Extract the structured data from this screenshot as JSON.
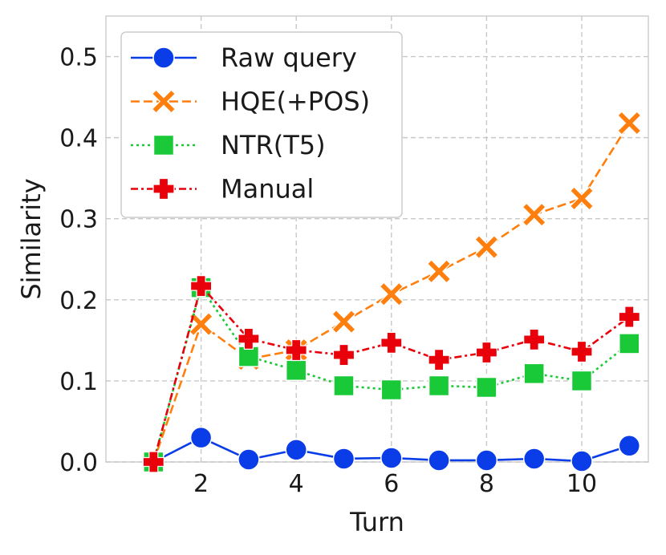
{
  "chart_data": {
    "type": "line",
    "title": "",
    "xlabel": "Turn",
    "ylabel": "Similarity",
    "xlim": [
      0.0,
      11.4
    ],
    "ylim": [
      0.0,
      0.55
    ],
    "xticks": [
      2,
      4,
      6,
      8,
      10
    ],
    "yticks": [
      0.0,
      0.1,
      0.2,
      0.3,
      0.4,
      0.5
    ],
    "ytick_labels": [
      "0.0",
      "0.1",
      "0.2",
      "0.3",
      "0.4",
      "0.5"
    ],
    "grid": true,
    "legend_position": "top-left",
    "x": [
      1,
      2,
      3,
      4,
      5,
      6,
      7,
      8,
      9,
      10,
      11
    ],
    "series": [
      {
        "name": "Raw query",
        "color": "#0a3ce8",
        "marker": "circle",
        "linestyle": "solid",
        "values": [
          0.0,
          0.03,
          0.003,
          0.015,
          0.004,
          0.005,
          0.002,
          0.002,
          0.004,
          0.001,
          0.02
        ]
      },
      {
        "name": "HQE(+POS)",
        "color": "#ff7f0e",
        "marker": "x",
        "linestyle": "dashed",
        "values": [
          0.0,
          0.17,
          0.127,
          0.138,
          0.173,
          0.207,
          0.235,
          0.265,
          0.305,
          0.325,
          0.418
        ]
      },
      {
        "name": "NTR(T5)",
        "color": "#1ac938",
        "marker": "square",
        "linestyle": "dotted",
        "values": [
          0.0,
          0.215,
          0.13,
          0.113,
          0.094,
          0.089,
          0.094,
          0.092,
          0.109,
          0.1,
          0.146
        ]
      },
      {
        "name": "Manual",
        "color": "#e8000b",
        "marker": "plus",
        "linestyle": "dashdot",
        "values": [
          0.0,
          0.217,
          0.152,
          0.138,
          0.132,
          0.147,
          0.126,
          0.135,
          0.151,
          0.136,
          0.179
        ]
      }
    ]
  }
}
